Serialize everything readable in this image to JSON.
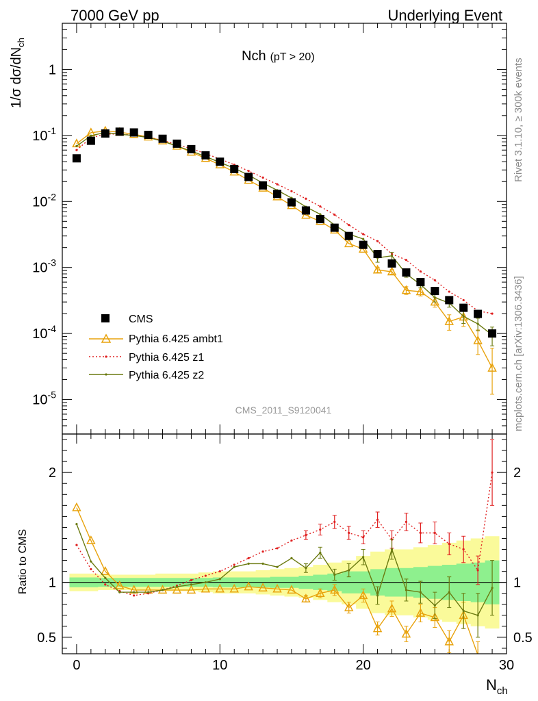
{
  "header": {
    "left": "7000 GeV pp",
    "right": "Underlying Event"
  },
  "side_labels": {
    "rivet": "Rivet 3.1.10, ≥ 300k events",
    "mcplots": "mcplots.cern.ch [arXiv:1306.3436]"
  },
  "watermark": "CMS_2011_S9120041",
  "plot_title": {
    "main": "Nch",
    "sub": "(pT > 20)"
  },
  "colors": {
    "cms": "#000000",
    "ambt1": "#e8a20c",
    "z1": "#e02020",
    "z2": "#6b7a10",
    "band_inner": "#8ef08e",
    "band_outer": "#fafa9a"
  },
  "chart_data": [
    {
      "type": "scatter",
      "panel": "main",
      "yscale": "log",
      "ylabel": "1/σ dσ/dN",
      "ylabel_sub": "ch",
      "xlim": [
        -1,
        30
      ],
      "ylim": [
        3e-06,
        5
      ],
      "y_ticks": [
        {
          "value": 1,
          "label": "1"
        },
        {
          "value": 0.1,
          "base": "10",
          "exp": "-1"
        },
        {
          "value": 0.01,
          "base": "10",
          "exp": "-2"
        },
        {
          "value": 0.001,
          "base": "10",
          "exp": "-3"
        },
        {
          "value": 0.0001,
          "base": "10",
          "exp": "-4"
        },
        {
          "value": 1e-05,
          "base": "10",
          "exp": "-5"
        }
      ],
      "x": [
        0,
        1,
        2,
        3,
        4,
        5,
        6,
        7,
        8,
        9,
        10,
        11,
        12,
        13,
        14,
        15,
        16,
        17,
        18,
        19,
        20,
        21,
        22,
        23,
        24,
        25,
        26,
        27,
        28,
        29
      ],
      "series": [
        {
          "name": "CMS",
          "style": "square",
          "color": "#000000",
          "values": [
            0.045,
            0.083,
            0.107,
            0.114,
            0.111,
            0.102,
            0.089,
            0.075,
            0.062,
            0.05,
            0.04,
            0.031,
            0.0235,
            0.0175,
            0.013,
            0.0097,
            0.0073,
            0.0054,
            0.004,
            0.003,
            0.0022,
            0.0016,
            0.00115,
            0.00084,
            0.0006,
            0.00044,
            0.00032,
            0.000245,
            0.000198,
            0.0001
          ]
        },
        {
          "name": "Pythia 6.425 ambt1",
          "style": "triangle",
          "color": "#e8a20c",
          "values": [
            0.075,
            0.11,
            0.117,
            0.112,
            0.104,
            0.095,
            0.083,
            0.069,
            0.056,
            0.045,
            0.036,
            0.028,
            0.021,
            0.016,
            0.0118,
            0.0087,
            0.0062,
            0.005,
            0.0037,
            0.0023,
            0.0019,
            0.00092,
            0.00086,
            0.00045,
            0.00043,
            0.0003,
            0.000152,
            0.000178,
            7.8e-05,
            3e-05
          ],
          "err_up": [
            0,
            0,
            0,
            0,
            0,
            0,
            0,
            0,
            0,
            0,
            0,
            0,
            0,
            0,
            0,
            0,
            0,
            0,
            0,
            0,
            0,
            8e-05,
            7e-05,
            6e-05,
            6e-05,
            5e-05,
            4e-05,
            5e-05,
            3.5e-05,
            3e-05
          ],
          "err_down": [
            0,
            0,
            0,
            0,
            0,
            0,
            0,
            0,
            0,
            0,
            0,
            0,
            0,
            0,
            0,
            0,
            0,
            0,
            0,
            0,
            0,
            8e-05,
            7e-05,
            6e-05,
            6e-05,
            5e-05,
            4e-05,
            5e-05,
            3e-05,
            1.8e-05
          ]
        },
        {
          "name": "Pythia 6.425 z1",
          "style": "dotted",
          "color": "#e02020",
          "values": [
            0.06,
            0.092,
            0.105,
            0.105,
            0.101,
            0.094,
            0.084,
            0.073,
            0.063,
            0.053,
            0.044,
            0.036,
            0.029,
            0.023,
            0.0182,
            0.0143,
            0.011,
            0.0084,
            0.0063,
            0.0044,
            0.0032,
            0.0025,
            0.0016,
            0.0013,
            0.00087,
            0.00064,
            0.00043,
            0.00032,
            0.00022,
            0.0002
          ]
        },
        {
          "name": "Pythia 6.425 z2",
          "style": "line",
          "color": "#6b7a10",
          "values": [
            0.069,
            0.099,
            0.111,
            0.104,
            0.1,
            0.093,
            0.082,
            0.069,
            0.058,
            0.048,
            0.039,
            0.032,
            0.025,
            0.019,
            0.0148,
            0.0113,
            0.0083,
            0.0064,
            0.0044,
            0.0032,
            0.0027,
            0.0014,
            0.0015,
            0.0008,
            0.00055,
            0.00035,
            0.00029,
            0.000182,
            0.00014,
            9.5e-05
          ],
          "err_up": [
            0,
            0,
            0,
            0,
            0,
            0,
            0,
            0,
            0,
            0,
            0,
            0,
            0,
            0,
            0,
            0,
            0,
            0,
            0,
            0,
            0,
            0.0002,
            0.0002,
            9e-05,
            6e-05,
            5e-05,
            4e-05,
            4e-05,
            3e-05,
            3e-05
          ],
          "err_down": [
            0,
            0,
            0,
            0,
            0,
            0,
            0,
            0,
            0,
            0,
            0,
            0,
            0,
            0,
            0,
            0,
            0,
            0,
            0,
            0,
            0,
            0.0002,
            0.0002,
            9e-05,
            6e-05,
            5e-05,
            4e-05,
            4e-05,
            3e-05,
            3e-05
          ]
        }
      ]
    },
    {
      "type": "line",
      "panel": "ratio",
      "ylabel": "Ratio to CMS",
      "xlabel": "N",
      "xlabel_sub": "ch",
      "xlim": [
        -1,
        30
      ],
      "ylim": [
        0.35,
        2.35
      ],
      "x_ticks": [
        0,
        10,
        20,
        30
      ],
      "y_ticks": [
        0.5,
        1,
        2
      ],
      "band_inner_halfwidth": [
        0.045,
        0.045,
        0.04,
        0.04,
        0.04,
        0.04,
        0.04,
        0.04,
        0.04,
        0.04,
        0.045,
        0.045,
        0.045,
        0.045,
        0.05,
        0.05,
        0.06,
        0.07,
        0.08,
        0.1,
        0.1,
        0.12,
        0.13,
        0.13,
        0.14,
        0.15,
        0.16,
        0.17,
        0.18,
        0.2
      ],
      "band_outer_halfwidth": [
        0.08,
        0.08,
        0.07,
        0.07,
        0.07,
        0.07,
        0.08,
        0.08,
        0.08,
        0.09,
        0.1,
        0.1,
        0.1,
        0.11,
        0.12,
        0.13,
        0.14,
        0.16,
        0.18,
        0.2,
        0.24,
        0.28,
        0.3,
        0.3,
        0.32,
        0.34,
        0.36,
        0.38,
        0.4,
        0.42
      ],
      "x": [
        0,
        1,
        2,
        3,
        4,
        5,
        6,
        7,
        8,
        9,
        10,
        11,
        12,
        13,
        14,
        15,
        16,
        17,
        18,
        19,
        20,
        21,
        22,
        23,
        24,
        25,
        26,
        27,
        28,
        29
      ],
      "series": [
        {
          "name": "Pythia 6.425 ambt1",
          "style": "triangle",
          "color": "#e8a20c",
          "values": [
            1.68,
            1.38,
            1.1,
            0.97,
            0.93,
            0.93,
            0.93,
            0.93,
            0.93,
            0.94,
            0.94,
            0.94,
            0.96,
            0.95,
            0.94,
            0.93,
            0.85,
            0.9,
            0.93,
            0.77,
            0.88,
            0.58,
            0.76,
            0.53,
            0.72,
            0.68,
            0.46,
            0.7,
            0.34,
            null
          ],
          "err": [
            0,
            0,
            0,
            0,
            0,
            0,
            0,
            0,
            0,
            0,
            0,
            0,
            0,
            0,
            0,
            0,
            0.03,
            0.04,
            0.05,
            0.05,
            0.06,
            0.06,
            0.07,
            0.07,
            0.08,
            0.09,
            0.1,
            0.12,
            0.12,
            0
          ]
        },
        {
          "name": "Pythia 6.425 z1",
          "style": "dotted",
          "color": "#e02020",
          "values": [
            1.34,
            1.12,
            0.98,
            0.92,
            0.88,
            0.9,
            0.93,
            0.97,
            1.02,
            1.06,
            1.1,
            1.16,
            1.22,
            1.28,
            1.31,
            1.38,
            1.43,
            1.48,
            1.55,
            1.45,
            1.41,
            1.57,
            1.39,
            1.55,
            1.45,
            1.45,
            1.35,
            1.3,
            1.11,
            2.0
          ],
          "err": [
            0,
            0,
            0,
            0,
            0,
            0,
            0,
            0,
            0,
            0,
            0,
            0,
            0,
            0,
            0,
            0,
            0.04,
            0.05,
            0.06,
            0.06,
            0.06,
            0.07,
            0.08,
            0.08,
            0.09,
            0.1,
            0.1,
            0.12,
            0.13,
            0.3
          ]
        },
        {
          "name": "Pythia 6.425 z2",
          "style": "line",
          "color": "#6b7a10",
          "values": [
            1.53,
            1.19,
            1.04,
            0.91,
            0.91,
            0.91,
            0.93,
            0.96,
            0.98,
            1.0,
            1.03,
            1.14,
            1.17,
            1.17,
            1.14,
            1.22,
            1.13,
            1.27,
            1.07,
            1.11,
            1.23,
            0.88,
            1.3,
            0.93,
            0.91,
            0.79,
            0.91,
            0.74,
            0.7,
            0.95
          ],
          "err": [
            0,
            0,
            0,
            0,
            0,
            0,
            0,
            0,
            0,
            0,
            0,
            0,
            0,
            0,
            0,
            0,
            0.04,
            0.05,
            0.05,
            0.06,
            0.07,
            0.08,
            0.09,
            0.1,
            0.1,
            0.12,
            0.14,
            0.16,
            0.2,
            0.25
          ]
        }
      ]
    }
  ]
}
